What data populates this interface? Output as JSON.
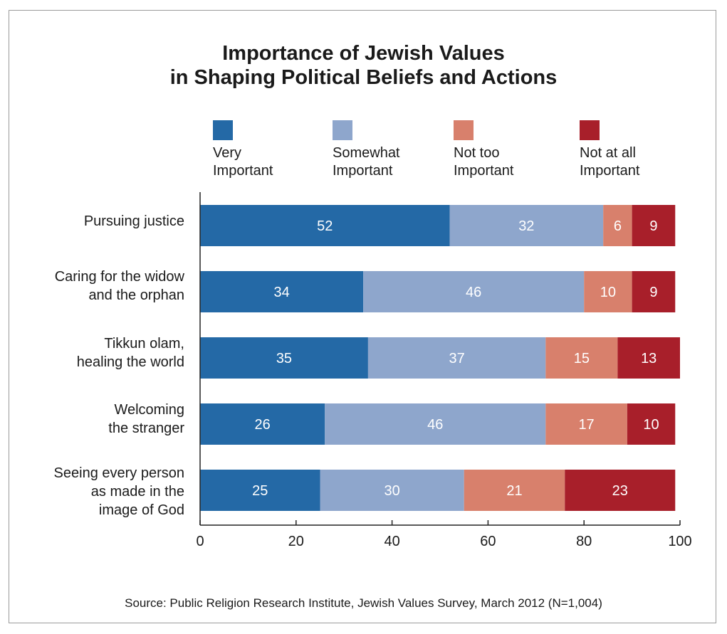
{
  "chart_data": {
    "type": "bar",
    "orientation": "horizontal",
    "stacked": true,
    "title": "Importance of Jewish Values\nin Shaping Political Beliefs and Actions",
    "categories": [
      "Pursuing justice",
      "Caring for the widow\nand the orphan",
      "Tikkun olam,\nhealing the world",
      "Welcoming\nthe stranger",
      "Seeing every person\nas made in the\nimage of God"
    ],
    "series": [
      {
        "name": "Very\nImportant",
        "color": "#2469a6",
        "values": [
          52,
          34,
          35,
          26,
          25
        ]
      },
      {
        "name": "Somewhat\nImportant",
        "color": "#8ea6cc",
        "values": [
          32,
          46,
          37,
          46,
          30
        ]
      },
      {
        "name": "Not too\nImportant",
        "color": "#d8806c",
        "values": [
          6,
          10,
          15,
          17,
          21
        ]
      },
      {
        "name": "Not at all\nImportant",
        "color": "#a81f2a",
        "values": [
          9,
          9,
          13,
          10,
          23
        ]
      }
    ],
    "xlim": [
      0,
      100
    ],
    "xticks": [
      "0",
      "20",
      "40",
      "60",
      "80",
      "100"
    ],
    "legend_position": "top",
    "grid": false,
    "source": "Source: Public Religion Research Institute, Jewish Values Survey, March 2012 (N=1,004)"
  }
}
